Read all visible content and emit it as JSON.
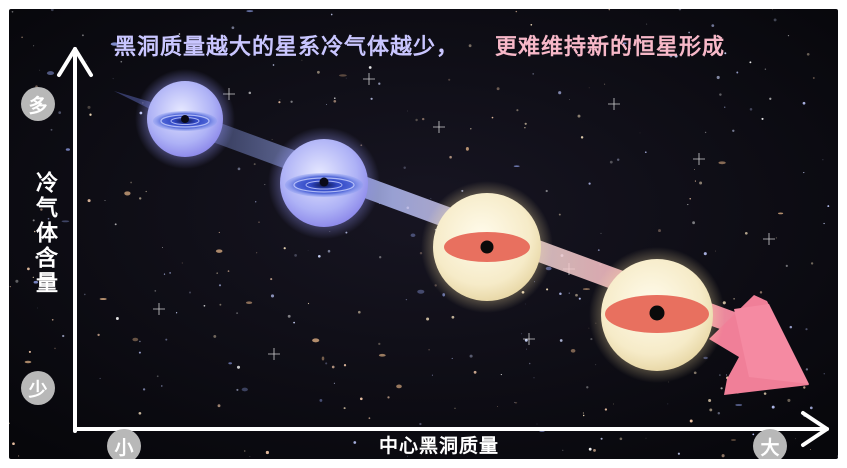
{
  "title": {
    "part1": "黑洞质量越大的星系冷气体越少，",
    "part2": "更难维持新的恒星形成"
  },
  "y_axis": {
    "label": "冷气体含量",
    "top": "多",
    "bottom": "少"
  },
  "x_axis": {
    "label": "中心黑洞质量",
    "left": "小",
    "right": "大"
  },
  "colors": {
    "background": "#0b0a10",
    "title_blue": "#c9c6ff",
    "title_pink": "#f7b8c8",
    "gas_rich_galaxy": "#8f8cf0",
    "gas_poor_galaxy": "#f0e6c4",
    "arrow_start": "#9fb0ff",
    "arrow_end": "#f08aa0",
    "disk_blue": "#2b3ea8",
    "disk_red": "#e86a5c"
  }
}
